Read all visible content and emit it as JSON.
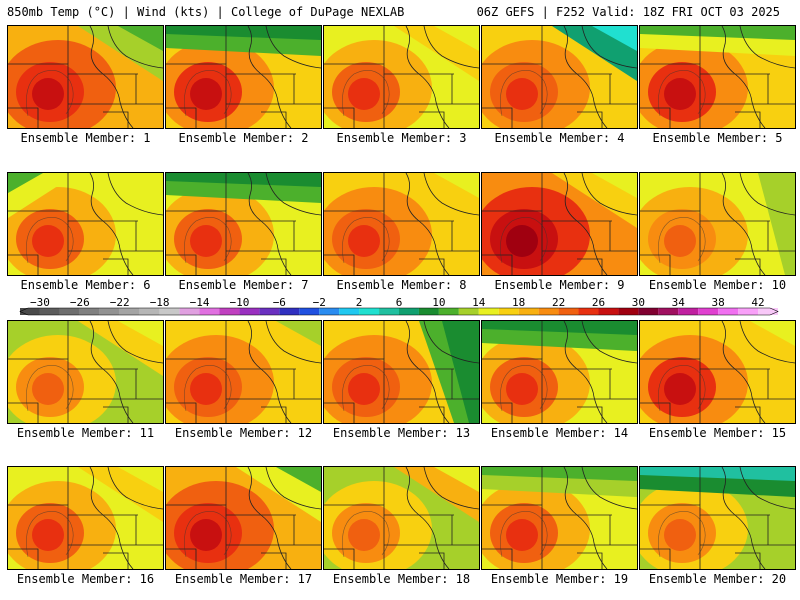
{
  "header": {
    "left": "850mb Temp (°C) | Wind (kts) | College of DuPage NEXLAB",
    "right": "06Z GEFS | F252 Valid: 18Z FRI OCT 03 2025"
  },
  "members": [
    {
      "label": "Ensemble Member: 1",
      "temp_c": 25,
      "cool_corner": "ne",
      "cool_temp_c": 10
    },
    {
      "label": "Ensemble Member: 2",
      "temp_c": 24,
      "cool_corner": "n",
      "cool_temp_c": 8
    },
    {
      "label": "Ensemble Member: 3",
      "temp_c": 22,
      "cool_corner": "ne",
      "cool_temp_c": 14
    },
    {
      "label": "Ensemble Member: 4",
      "temp_c": 23,
      "cool_corner": "ne",
      "cool_temp_c": 3
    },
    {
      "label": "Ensemble Member: 5",
      "temp_c": 24,
      "cool_corner": "n",
      "cool_temp_c": 11
    },
    {
      "label": "Ensemble Member: 6",
      "temp_c": 22,
      "cool_corner": "nw",
      "cool_temp_c": 11
    },
    {
      "label": "Ensemble Member: 7",
      "temp_c": 22,
      "cool_corner": "n",
      "cool_temp_c": 8
    },
    {
      "label": "Ensemble Member: 8",
      "temp_c": 23,
      "cool_corner": "ne",
      "cool_temp_c": 14
    },
    {
      "label": "Ensemble Member: 9",
      "temp_c": 27,
      "cool_corner": "ne",
      "cool_temp_c": 14
    },
    {
      "label": "Ensemble Member: 10",
      "temp_c": 21,
      "cool_corner": "e",
      "cool_temp_c": 12
    },
    {
      "label": "Ensemble Member: 11",
      "temp_c": 20,
      "cool_corner": "ne",
      "cool_temp_c": 14
    },
    {
      "label": "Ensemble Member: 12",
      "temp_c": 23,
      "cool_corner": "ne",
      "cool_temp_c": 13
    },
    {
      "label": "Ensemble Member: 13",
      "temp_c": 23,
      "cool_corner": "e",
      "cool_temp_c": 8
    },
    {
      "label": "Ensemble Member: 14",
      "temp_c": 22,
      "cool_corner": "n",
      "cool_temp_c": 8
    },
    {
      "label": "Ensemble Member: 15",
      "temp_c": 24,
      "cool_corner": "ne",
      "cool_temp_c": 14
    },
    {
      "label": "Ensemble Member: 16",
      "temp_c": 22,
      "cool_corner": "ne",
      "cool_temp_c": 14
    },
    {
      "label": "Ensemble Member: 17",
      "temp_c": 25,
      "cool_corner": "ne",
      "cool_temp_c": 11
    },
    {
      "label": "Ensemble Member: 18",
      "temp_c": 20,
      "cool_corner": "ne",
      "cool_temp_c": 15
    },
    {
      "label": "Ensemble Member: 19",
      "temp_c": 22,
      "cool_corner": "n",
      "cool_temp_c": 10
    },
    {
      "label": "Ensemble Member: 20",
      "temp_c": 20,
      "cool_corner": "n",
      "cool_temp_c": 5
    }
  ],
  "colorbar": {
    "ticks": [
      "−30",
      "−26",
      "−22",
      "−18",
      "−14",
      "−10",
      "−6",
      "−2",
      "2",
      "6",
      "10",
      "14",
      "18",
      "22",
      "26",
      "30",
      "34",
      "38",
      "42"
    ],
    "bin_edges_c": [
      -32,
      -30,
      -28,
      -26,
      -24,
      -22,
      -20,
      -18,
      -16,
      -14,
      -12,
      -10,
      -8,
      -6,
      -4,
      -2,
      0,
      2,
      4,
      6,
      8,
      10,
      12,
      14,
      16,
      18,
      20,
      22,
      24,
      26,
      28,
      30,
      32,
      34,
      36,
      38,
      40,
      42,
      44
    ],
    "colors": [
      "#4a4a4a",
      "#5c5c5c",
      "#6e6e6e",
      "#808080",
      "#929292",
      "#a4a4a4",
      "#b6b6b6",
      "#c8c8c8",
      "#e0a0e0",
      "#e070e0",
      "#c040c0",
      "#9a30c0",
      "#6a30c0",
      "#3030c0",
      "#2050e0",
      "#2a8cf0",
      "#20c8f0",
      "#20e0d0",
      "#20c0a0",
      "#10a070",
      "#1a8c30",
      "#4cb02c",
      "#a6d02a",
      "#e8f020",
      "#f8d010",
      "#f8b010",
      "#f88c10",
      "#f06010",
      "#e83010",
      "#c81010",
      "#a00010",
      "#800030",
      "#a01060",
      "#c020a0",
      "#e040d0",
      "#f070f0",
      "#f8a0f8",
      "#f8c8f8"
    ]
  }
}
